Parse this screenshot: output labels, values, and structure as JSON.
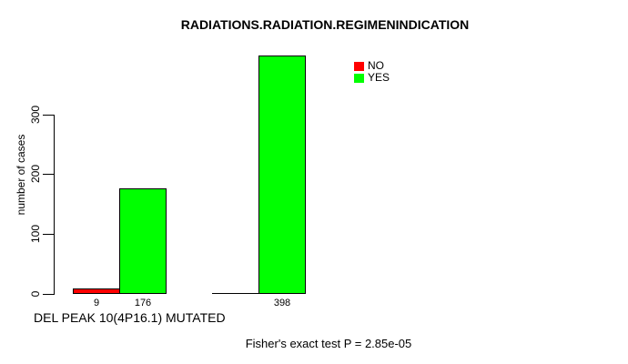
{
  "chart_data": {
    "type": "bar",
    "title": "RADIATIONS.RADIATION.REGIMENINDICATION",
    "ylabel": "number of cases",
    "xlabel": "DEL PEAK 10(4P16.1) MUTATED",
    "annotation": "Fisher's exact test P = 2.85e-05",
    "ylim": [
      0,
      400
    ],
    "yticks": [
      0,
      100,
      200,
      300
    ],
    "categories": [
      "",
      ""
    ],
    "series": [
      {
        "name": "NO",
        "color": "#ff0000",
        "values": [
          9,
          0
        ]
      },
      {
        "name": "YES",
        "color": "#00ff00",
        "values": [
          176,
          398
        ]
      }
    ],
    "value_labels": [
      "9",
      "176",
      "398"
    ],
    "legend_position": "top-right",
    "grid": false,
    "colors": {
      "axis": "#000000",
      "text": "#000000",
      "background": "#ffffff",
      "no": "#ff0000",
      "yes": "#00ff00"
    }
  }
}
